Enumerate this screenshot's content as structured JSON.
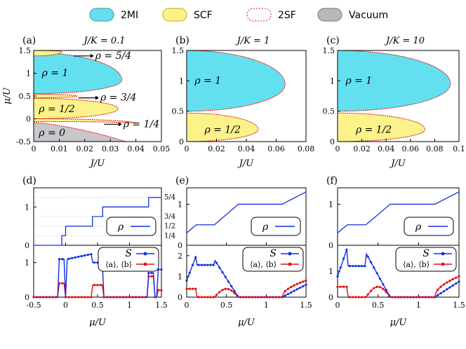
{
  "legend": {
    "items": [
      {
        "key": "2MI",
        "label": "2MI",
        "fill": "#63e0f0",
        "stroke": "#5aa0b0",
        "dash": false
      },
      {
        "key": "SCF",
        "label": "SCF",
        "fill": "#fbf28a",
        "stroke": "#d8b030",
        "dash": false
      },
      {
        "key": "2SF",
        "label": "2SF",
        "fill": "#ffffff",
        "stroke": "#e04040",
        "dash": true
      },
      {
        "key": "Vacuum",
        "label": "Vacuum",
        "fill": "#b8b8bc",
        "stroke": "#888888",
        "dash": false
      }
    ]
  },
  "colors": {
    "mi": "#63e0f0",
    "scf": "#fbf28a",
    "vac": "#c8c8cc",
    "boundary": "#e01010",
    "blue": "#1030e0",
    "red": "#e01010"
  },
  "chart_data": [
    {
      "panel": "(a)",
      "type": "phase-diagram",
      "title": "J/K = 0.1",
      "xlabel": "J/U",
      "ylabel": "μ/U",
      "xlim": [
        0,
        0.05
      ],
      "ylim": [
        -0.5,
        1.5
      ],
      "xticks": [
        "0",
        "0.01",
        "0.02",
        "0.03",
        "0.04",
        "0.05"
      ],
      "yticks": [
        "-0.5",
        "0",
        "0.5",
        "1",
        "1.5"
      ],
      "lobes": [
        {
          "phase": "2MI",
          "label": "ρ = 1",
          "mu_low": 0.55,
          "mu_high": 1.45,
          "tip_j": 0.0345,
          "tip_mu": 0.85
        },
        {
          "phase": "SCF",
          "label": "ρ = 1/2",
          "mu_low": 0.0,
          "mu_high": 0.45,
          "tip_j": 0.033,
          "tip_mu": 0.22
        },
        {
          "phase": "SCF",
          "label": "ρ = 3/4",
          "mu_low": 0.46,
          "mu_high": 0.54,
          "tip_j": 0.017,
          "tip_mu": 0.5
        },
        {
          "phase": "SCF",
          "label": "ρ = 5/4",
          "mu_low": 1.38,
          "mu_high": 1.5,
          "tip_j": 0.011,
          "tip_mu": 1.47
        },
        {
          "phase": "SCF",
          "label": "ρ = 1/4",
          "mu_low": -0.06,
          "mu_high": 0.0,
          "tip_j": 0.04,
          "tip_mu": -0.1
        },
        {
          "phase": "Vacuum",
          "label": "ρ = 0"
        }
      ],
      "annotations": [
        "ρ = 5/4",
        "ρ = 3/4",
        "ρ = 1/4"
      ]
    },
    {
      "panel": "(b)",
      "type": "phase-diagram",
      "title": "J/K = 1",
      "xlabel": "J/U",
      "ylabel": "",
      "xlim": [
        0,
        0.08
      ],
      "ylim": [
        0,
        1.5
      ],
      "xticks": [
        "0",
        "0.02",
        "0.04",
        "0.06",
        "0.08"
      ],
      "yticks": [
        "0",
        "0.5",
        "1",
        "1.5"
      ],
      "lobes": [
        {
          "phase": "2MI",
          "label": "ρ = 1",
          "mu_low": 0.5,
          "mu_high": 1.5,
          "tip_j": 0.066,
          "tip_mu": 0.94
        },
        {
          "phase": "SCF",
          "label": "ρ = 1/2",
          "mu_low": 0.0,
          "mu_high": 0.47,
          "tip_j": 0.048,
          "tip_mu": 0.2
        }
      ]
    },
    {
      "panel": "(c)",
      "type": "phase-diagram",
      "title": "J/K = 10",
      "xlabel": "J/U",
      "ylabel": "",
      "xlim": [
        0,
        0.1
      ],
      "ylim": [
        0,
        1.5
      ],
      "xticks": [
        "0",
        "0.02",
        "0.04",
        "0.06",
        "0.08",
        "0.1"
      ],
      "yticks": [
        "0",
        "0.5",
        "1",
        "1.5"
      ],
      "lobes": [
        {
          "phase": "2MI",
          "label": "ρ = 1",
          "mu_low": 0.5,
          "mu_high": 1.5,
          "tip_j": 0.093,
          "tip_mu": 0.95
        },
        {
          "phase": "SCF",
          "label": "ρ = 1/2",
          "mu_low": 0.0,
          "mu_high": 0.47,
          "tip_j": 0.072,
          "tip_mu": 0.2
        }
      ]
    },
    {
      "panel": "(d)",
      "type": "line",
      "xlabel": "μ/U",
      "xlim": [
        -0.5,
        1.5
      ],
      "xticks": [
        "-0.5",
        "0",
        "0.5",
        "1",
        "1.5"
      ],
      "top": {
        "ylim": [
          0,
          1.5
        ],
        "yticks": [
          "0",
          "1"
        ],
        "right_labels": [
          "5/4",
          "3/4",
          "1/2",
          "1/4"
        ],
        "legend": "ρ",
        "rho_steps": [
          [
            -0.5,
            0
          ],
          [
            -0.06,
            0
          ],
          [
            -0.06,
            0.25
          ],
          [
            0.0,
            0.25
          ],
          [
            0.0,
            0.5
          ],
          [
            0.42,
            0.5
          ],
          [
            0.42,
            0.75
          ],
          [
            0.58,
            0.75
          ],
          [
            0.58,
            1.0
          ],
          [
            1.3,
            1.0
          ],
          [
            1.3,
            1.25
          ],
          [
            1.5,
            1.25
          ]
        ]
      },
      "bottom": {
        "ylim": [
          0,
          1.5
        ],
        "yticks": [
          "0",
          "1"
        ],
        "legend_S": "S",
        "legend_ab": "⟨a⟩, ⟨b⟩"
      }
    },
    {
      "panel": "(e)",
      "type": "line",
      "xlabel": "μ/U",
      "xlim": [
        0,
        1.5
      ],
      "xticks": [
        "0",
        "0.5",
        "1",
        "1.5"
      ],
      "top": {
        "ylim": [
          0,
          1.4
        ],
        "yticks": [
          "0",
          "1"
        ],
        "legend": "ρ",
        "rho_points": [
          [
            0,
            0.3
          ],
          [
            0.12,
            0.5
          ],
          [
            0.35,
            0.5
          ],
          [
            0.65,
            1.0
          ],
          [
            1.2,
            1.0
          ],
          [
            1.5,
            1.3
          ]
        ]
      },
      "bottom": {
        "ylim": [
          0,
          2.5
        ],
        "yticks": [
          "0",
          "1",
          "2"
        ],
        "legend_S": "S",
        "legend_ab": "⟨a⟩, ⟨b⟩"
      }
    },
    {
      "panel": "(f)",
      "type": "line",
      "xlabel": "μ/U",
      "xlim": [
        0,
        1.5
      ],
      "xticks": [
        "0",
        "0.5",
        "1",
        "1.5"
      ],
      "top": {
        "ylim": [
          0,
          1.4
        ],
        "yticks": [
          "0",
          "1"
        ],
        "legend": "ρ",
        "rho_points": [
          [
            0,
            0.3
          ],
          [
            0.12,
            0.5
          ],
          [
            0.35,
            0.5
          ],
          [
            0.65,
            1.0
          ],
          [
            1.2,
            1.0
          ],
          [
            1.5,
            1.3
          ]
        ]
      },
      "bottom": {
        "ylim": [
          0,
          2.0
        ],
        "yticks": [
          "0",
          "1"
        ],
        "legend_S": "S",
        "legend_ab": "⟨a⟩, ⟨b⟩"
      }
    }
  ]
}
